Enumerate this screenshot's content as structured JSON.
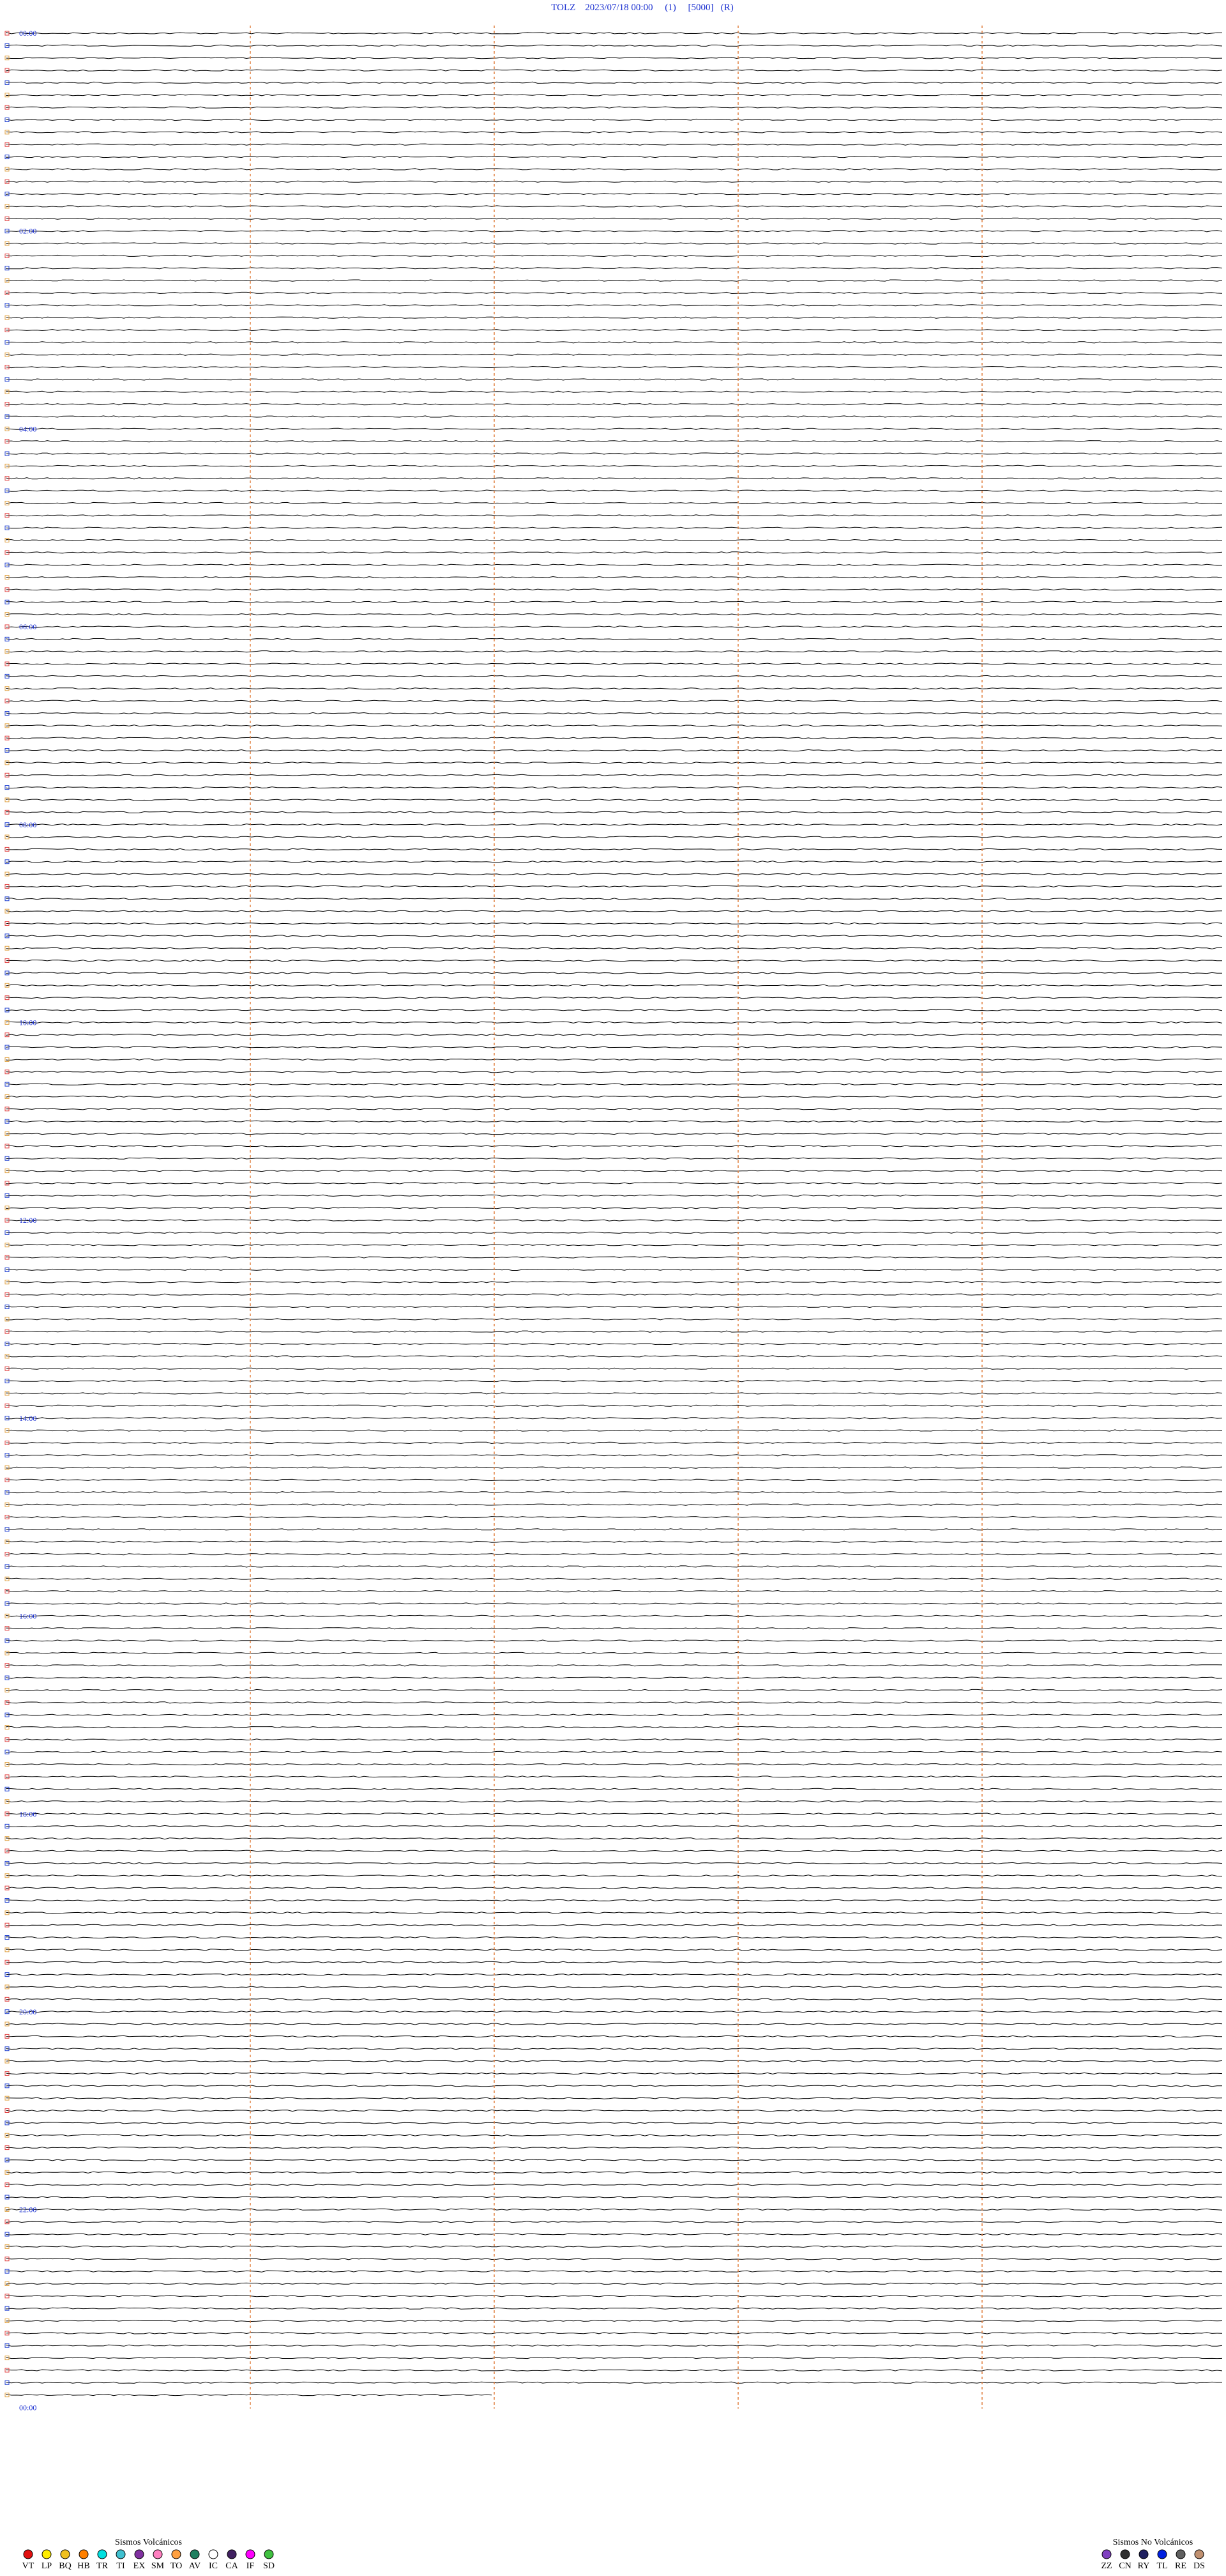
{
  "header": {
    "title": "TOLZ    2023/07/18 00:00     (1)     [5000]   (R)"
  },
  "time_labels": [
    "00:00",
    "02:00",
    "04:00",
    "06:00",
    "08:00",
    "10:00",
    "12:00",
    "14:00",
    "16:00",
    "18:00",
    "20:00",
    "22:00",
    "00:00"
  ],
  "legend": {
    "volcanic": {
      "title": "Sismos Volcánicos",
      "items": [
        {
          "code": "VT",
          "color": "#e01010"
        },
        {
          "code": "LP",
          "color": "#ffee00"
        },
        {
          "code": "BQ",
          "color": "#f0c020"
        },
        {
          "code": "HB",
          "color": "#ff8000"
        },
        {
          "code": "TR",
          "color": "#00e0e0"
        },
        {
          "code": "TI",
          "color": "#40c0d0"
        },
        {
          "code": "EX",
          "color": "#8030a0"
        },
        {
          "code": "SM",
          "color": "#ff80c0"
        },
        {
          "code": "TO",
          "color": "#ffa040"
        },
        {
          "code": "AV",
          "color": "#208060"
        },
        {
          "code": "IC",
          "color": "#ffffff"
        },
        {
          "code": "CA",
          "color": "#402060"
        },
        {
          "code": "IF",
          "color": "#ff00ff"
        },
        {
          "code": "SD",
          "color": "#40c040"
        }
      ]
    },
    "non_volcanic": {
      "title": "Sismos No Volcánicos",
      "items": [
        {
          "code": "ZZ",
          "color": "#8040c0"
        },
        {
          "code": "CN",
          "color": "#303030"
        },
        {
          "code": "RY",
          "color": "#202060"
        },
        {
          "code": "TL",
          "color": "#0020e0"
        },
        {
          "code": "RE",
          "color": "#606060"
        },
        {
          "code": "DS",
          "color": "#c09070"
        }
      ]
    }
  }
}
